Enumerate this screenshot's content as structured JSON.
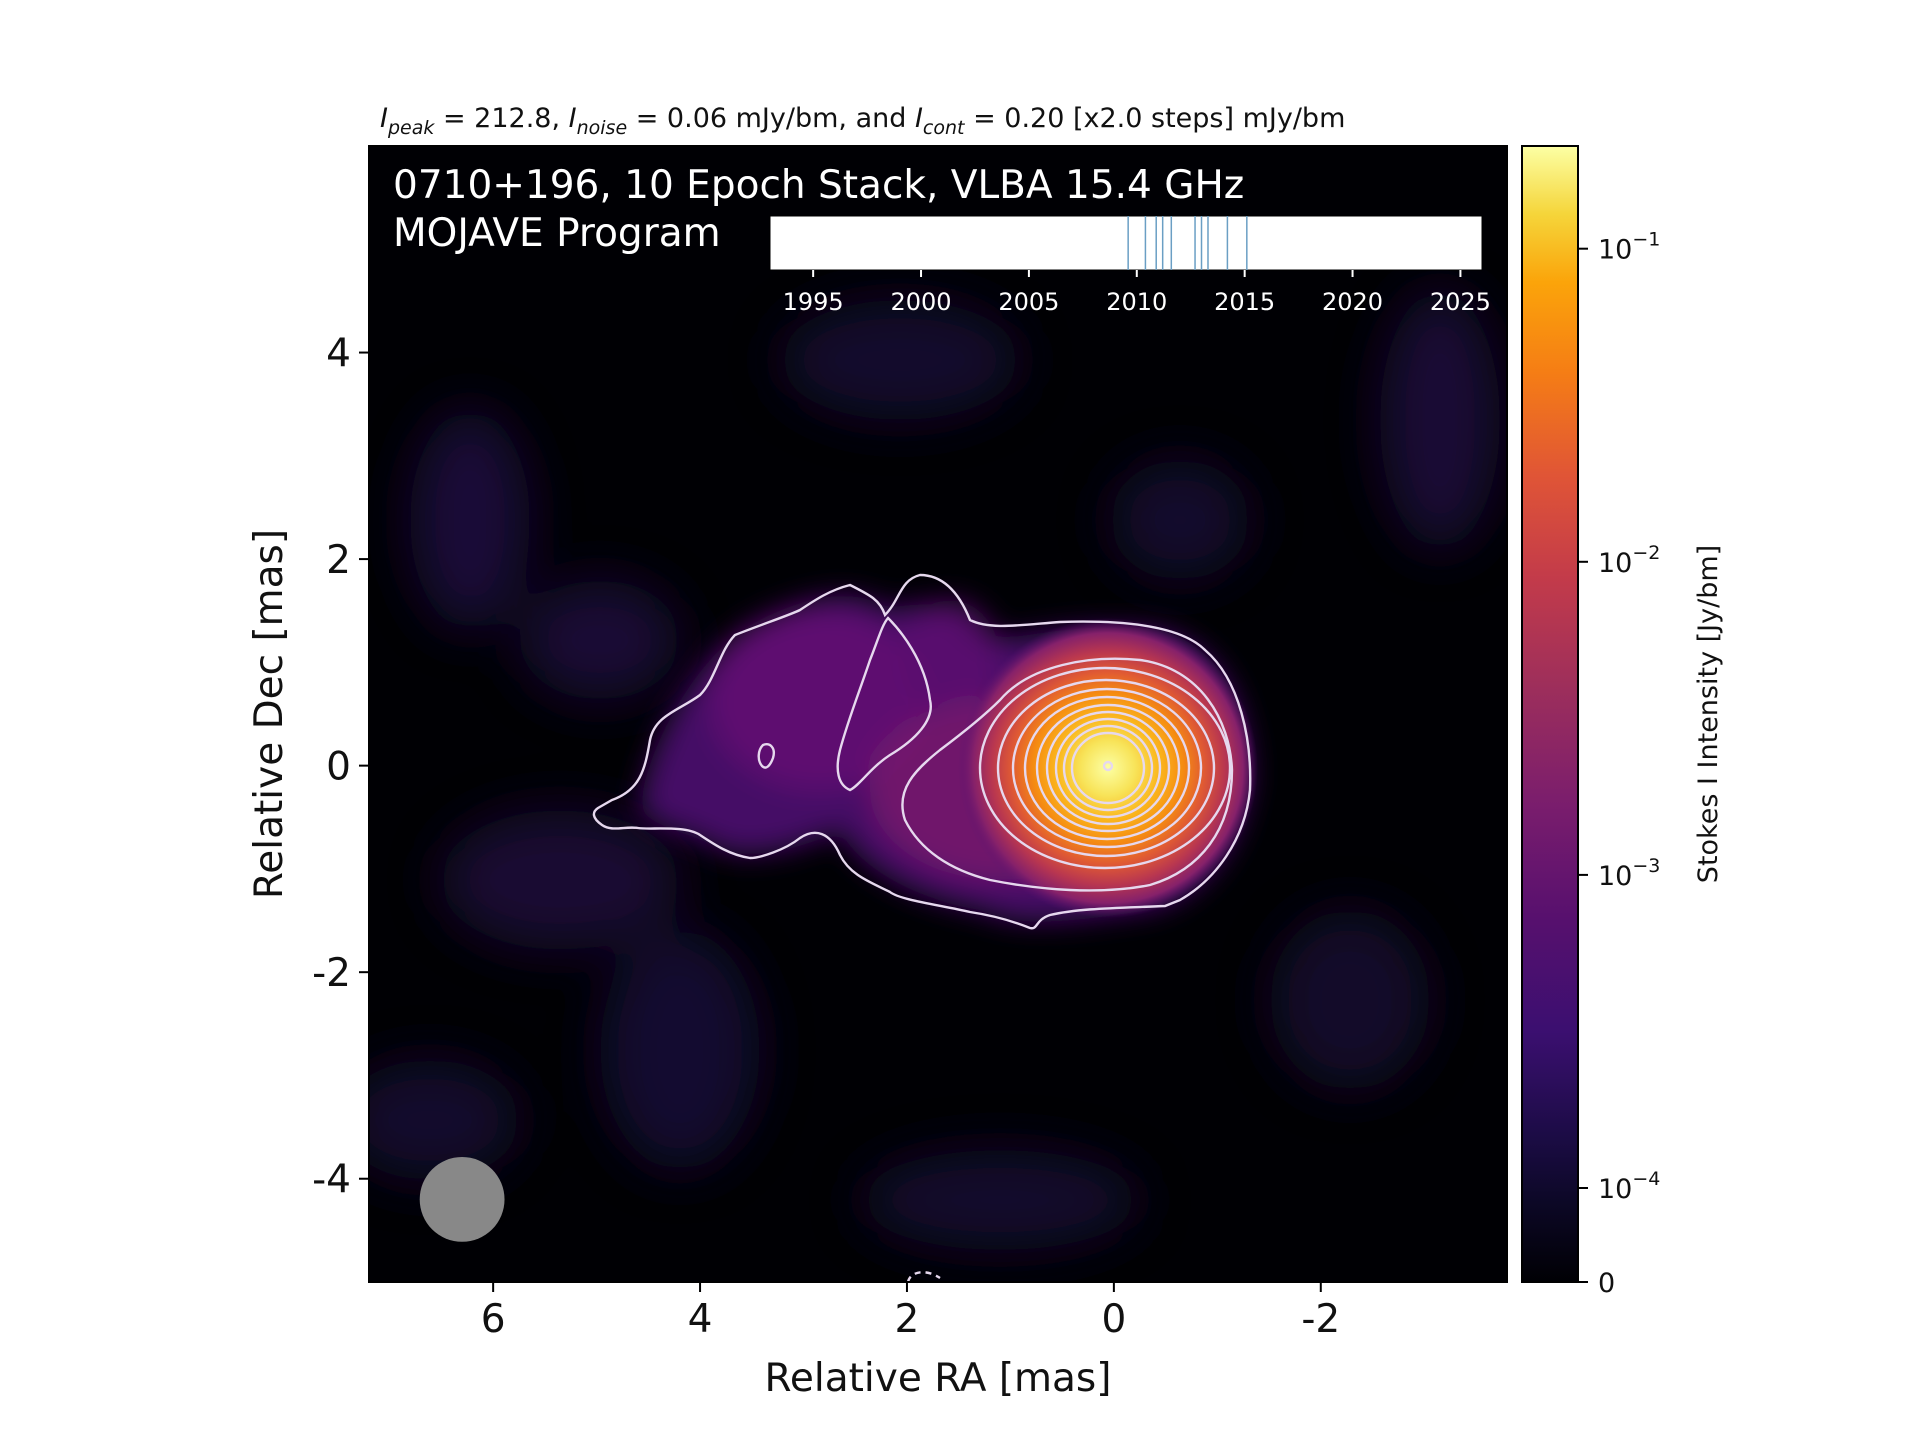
{
  "chart_data": {
    "type": "heatmap",
    "header": {
      "peak_sym": "I",
      "peak_sub": "peak",
      "peak_val": " = 212.8, ",
      "noise_sym": "I",
      "noise_sub": "noise",
      "noise_val": " = 0.06 mJy/bm, and ",
      "cont_sym": "I",
      "cont_sub": "cont",
      "cont_val": " = 0.20 [x2.0 steps] mJy/bm"
    },
    "title_line1": "0710+196, 10 Epoch Stack, VLBA 15.4 GHz",
    "title_line2": "MOJAVE Program",
    "xlabel": "Relative RA [mas]",
    "ylabel": "Relative Dec [mas]",
    "xlim": [
      7.2,
      -3.8
    ],
    "ylim": [
      -5,
      6
    ],
    "x_ticks": [
      6,
      4,
      2,
      0,
      -2
    ],
    "x_tick_labels": [
      "6",
      "4",
      "2",
      "0",
      "-2"
    ],
    "y_ticks": [
      4,
      2,
      0,
      -2,
      -4
    ],
    "y_tick_labels": [
      "4",
      "2",
      "0",
      "-2",
      "-4"
    ],
    "colorbar": {
      "label": "Stokes I Intensity [Jy/bm]",
      "scale": "log",
      "colormap": "inferno",
      "ticks": [
        {
          "value": 0.1,
          "base": "10",
          "exp": "−1"
        },
        {
          "value": 0.01,
          "base": "10",
          "exp": "−2"
        },
        {
          "value": 0.001,
          "base": "10",
          "exp": "−3"
        },
        {
          "value": 0.0001,
          "base": "10",
          "exp": "−4"
        },
        {
          "value": 0,
          "base": "0",
          "exp": ""
        }
      ]
    },
    "epoch_timeline": {
      "xlim": [
        1993,
        2026
      ],
      "ticks": [
        1995,
        2000,
        2005,
        2010,
        2015,
        2020,
        2025
      ],
      "tick_labels": [
        "1995",
        "2000",
        "2005",
        "2010",
        "2015",
        "2020",
        "2025"
      ],
      "epochs": [
        2009.6,
        2010.4,
        2010.9,
        2011.2,
        2011.6,
        2012.7,
        2013.0,
        2013.3,
        2014.2,
        2015.1
      ],
      "epoch_color": "#6a9fc4"
    },
    "core": {
      "x": 0,
      "y": 0,
      "peak_jy_per_bm": 0.2128
    },
    "beam": {
      "x": 6.3,
      "y": -4.2,
      "major_mas": 0.82,
      "minor_mas": 0.82,
      "color": "#888888"
    },
    "contour_color": "#e6d8ee",
    "background_color": "#000004"
  }
}
